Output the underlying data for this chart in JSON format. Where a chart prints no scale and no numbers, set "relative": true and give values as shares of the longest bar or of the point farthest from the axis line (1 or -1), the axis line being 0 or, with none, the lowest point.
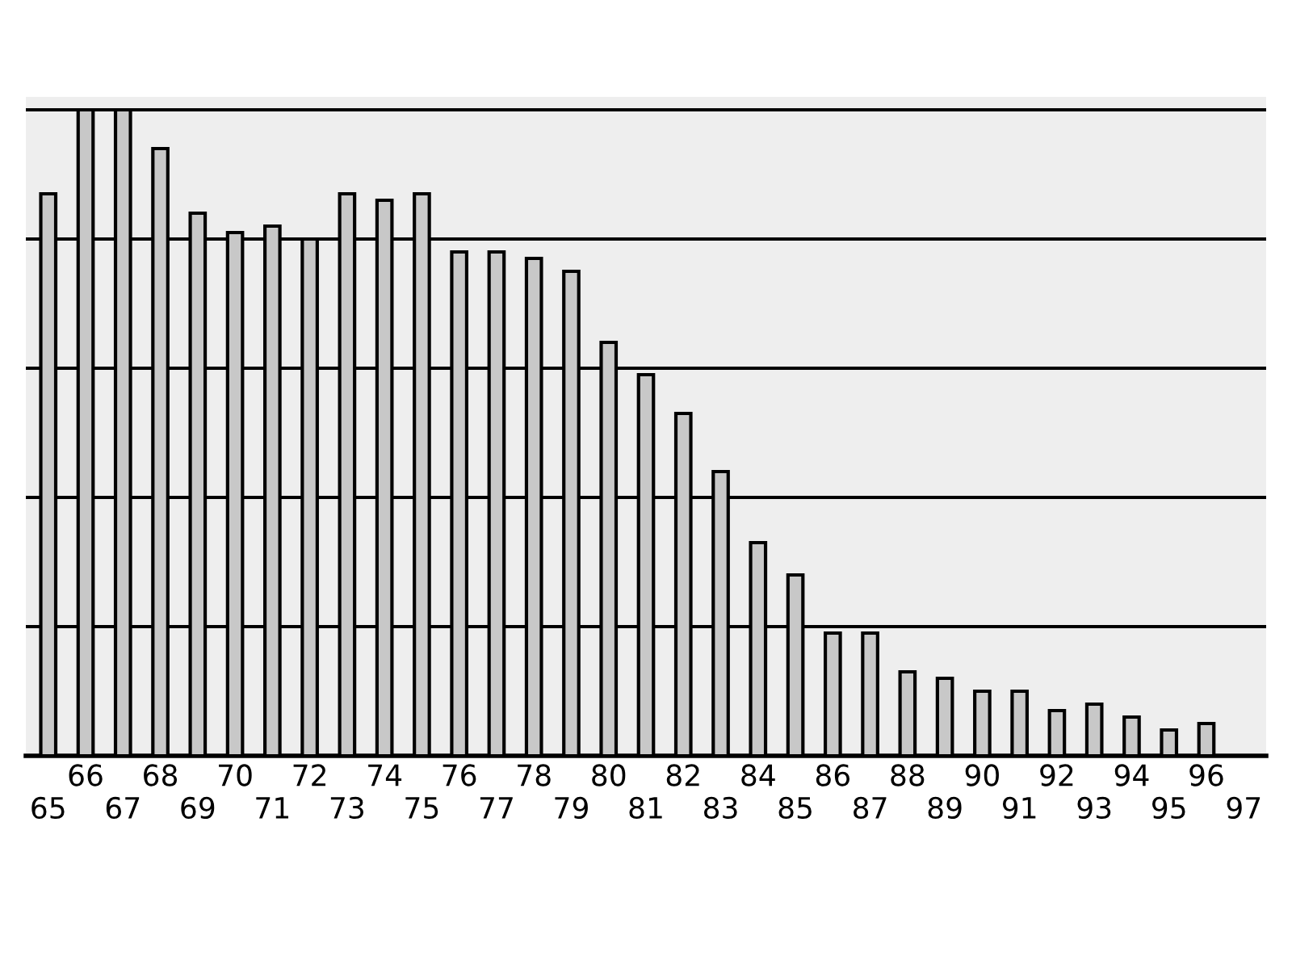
{
  "chart_data": {
    "type": "bar",
    "relative": true,
    "grid": "y",
    "color": "#c8c8c8",
    "categories": [
      "65",
      "66",
      "67",
      "68",
      "69",
      "70",
      "71",
      "72",
      "73",
      "74",
      "75",
      "76",
      "77",
      "78",
      "79",
      "80",
      "81",
      "82",
      "83",
      "84",
      "85",
      "86",
      "87",
      "88",
      "89",
      "90",
      "91",
      "92",
      "93",
      "94",
      "95",
      "96",
      "97"
    ],
    "values": [
      0.87,
      1.0,
      1.0,
      0.94,
      0.84,
      0.81,
      0.82,
      0.8,
      0.87,
      0.86,
      0.87,
      0.78,
      0.78,
      0.77,
      0.75,
      0.64,
      0.59,
      0.53,
      0.44,
      0.33,
      0.28,
      0.19,
      0.19,
      0.13,
      0.12,
      0.1,
      0.1,
      0.07,
      0.08,
      0.06,
      0.04,
      0.05,
      null
    ]
  }
}
